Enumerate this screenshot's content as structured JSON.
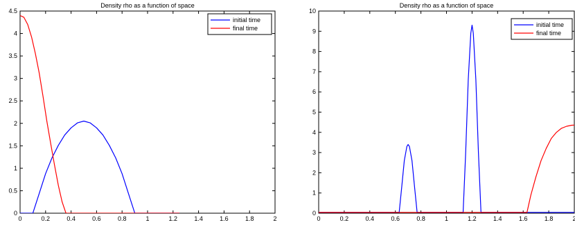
{
  "chart_data": [
    {
      "type": "line",
      "title": "Density rho as a function of space",
      "xlabel": "",
      "ylabel": "",
      "xlim": [
        0,
        2
      ],
      "ylim": [
        0,
        4.5
      ],
      "xticks": [
        "0",
        "0.2",
        "0.4",
        "0.6",
        "0.8",
        "1",
        "1.2",
        "1.4",
        "1.6",
        "1.8",
        "2"
      ],
      "yticks": [
        "0",
        "0.5",
        "1",
        "1.5",
        "2",
        "2.5",
        "3",
        "3.5",
        "4",
        "4.5"
      ],
      "legend": "top-right",
      "series": [
        {
          "name": "initial time",
          "color": "#0000ff",
          "points": [
            [
              0,
              0
            ],
            [
              0.1,
              0
            ],
            [
              0.15,
              0.44
            ],
            [
              0.2,
              0.88
            ],
            [
              0.25,
              1.23
            ],
            [
              0.3,
              1.51
            ],
            [
              0.35,
              1.74
            ],
            [
              0.4,
              1.9
            ],
            [
              0.45,
              2.01
            ],
            [
              0.5,
              2.05
            ],
            [
              0.55,
              2.01
            ],
            [
              0.6,
              1.9
            ],
            [
              0.65,
              1.74
            ],
            [
              0.7,
              1.51
            ],
            [
              0.75,
              1.23
            ],
            [
              0.8,
              0.88
            ],
            [
              0.85,
              0.44
            ],
            [
              0.9,
              0
            ],
            [
              1.25,
              0
            ]
          ]
        },
        {
          "name": "final time",
          "color": "#ff0000",
          "points": [
            [
              0,
              4.4
            ],
            [
              0.03,
              4.36
            ],
            [
              0.06,
              4.2
            ],
            [
              0.09,
              3.92
            ],
            [
              0.12,
              3.55
            ],
            [
              0.15,
              3.12
            ],
            [
              0.18,
              2.6
            ],
            [
              0.21,
              2.05
            ],
            [
              0.24,
              1.55
            ],
            [
              0.27,
              1.07
            ],
            [
              0.3,
              0.62
            ],
            [
              0.33,
              0.25
            ],
            [
              0.36,
              0
            ],
            [
              1.25,
              0
            ]
          ]
        }
      ]
    },
    {
      "type": "line",
      "title": "Density rho as a function of space",
      "xlabel": "",
      "ylabel": "",
      "xlim": [
        0,
        2
      ],
      "ylim": [
        0,
        10
      ],
      "xticks": [
        "0",
        "0.2",
        "0.4",
        "0.6",
        "0.8",
        "1",
        "1.2",
        "1.4",
        "1.6",
        "1.8",
        "2"
      ],
      "yticks": [
        "0",
        "1",
        "2",
        "3",
        "4",
        "5",
        "6",
        "7",
        "8",
        "9",
        "10"
      ],
      "legend": "top-right",
      "series": [
        {
          "name": "initial time",
          "color": "#0000ff",
          "points": [
            [
              0,
              0.04
            ],
            [
              0.63,
              0.04
            ],
            [
              0.65,
              1.3
            ],
            [
              0.67,
              2.6
            ],
            [
              0.69,
              3.3
            ],
            [
              0.7,
              3.4
            ],
            [
              0.71,
              3.3
            ],
            [
              0.73,
              2.6
            ],
            [
              0.75,
              1.3
            ],
            [
              0.77,
              0.04
            ],
            [
              1.13,
              0.04
            ],
            [
              1.15,
              3.0
            ],
            [
              1.17,
              6.6
            ],
            [
              1.19,
              8.9
            ],
            [
              1.2,
              9.3
            ],
            [
              1.21,
              8.9
            ],
            [
              1.23,
              6.6
            ],
            [
              1.25,
              3.0
            ],
            [
              1.27,
              0.04
            ],
            [
              2,
              0.04
            ]
          ]
        },
        {
          "name": "final time",
          "color": "#ff0000",
          "points": [
            [
              0,
              0.04
            ],
            [
              1.63,
              0.04
            ],
            [
              1.66,
              0.9
            ],
            [
              1.7,
              1.8
            ],
            [
              1.74,
              2.6
            ],
            [
              1.78,
              3.2
            ],
            [
              1.82,
              3.7
            ],
            [
              1.86,
              4.0
            ],
            [
              1.9,
              4.2
            ],
            [
              1.94,
              4.3
            ],
            [
              1.98,
              4.35
            ],
            [
              2,
              4.36
            ]
          ]
        }
      ]
    }
  ]
}
